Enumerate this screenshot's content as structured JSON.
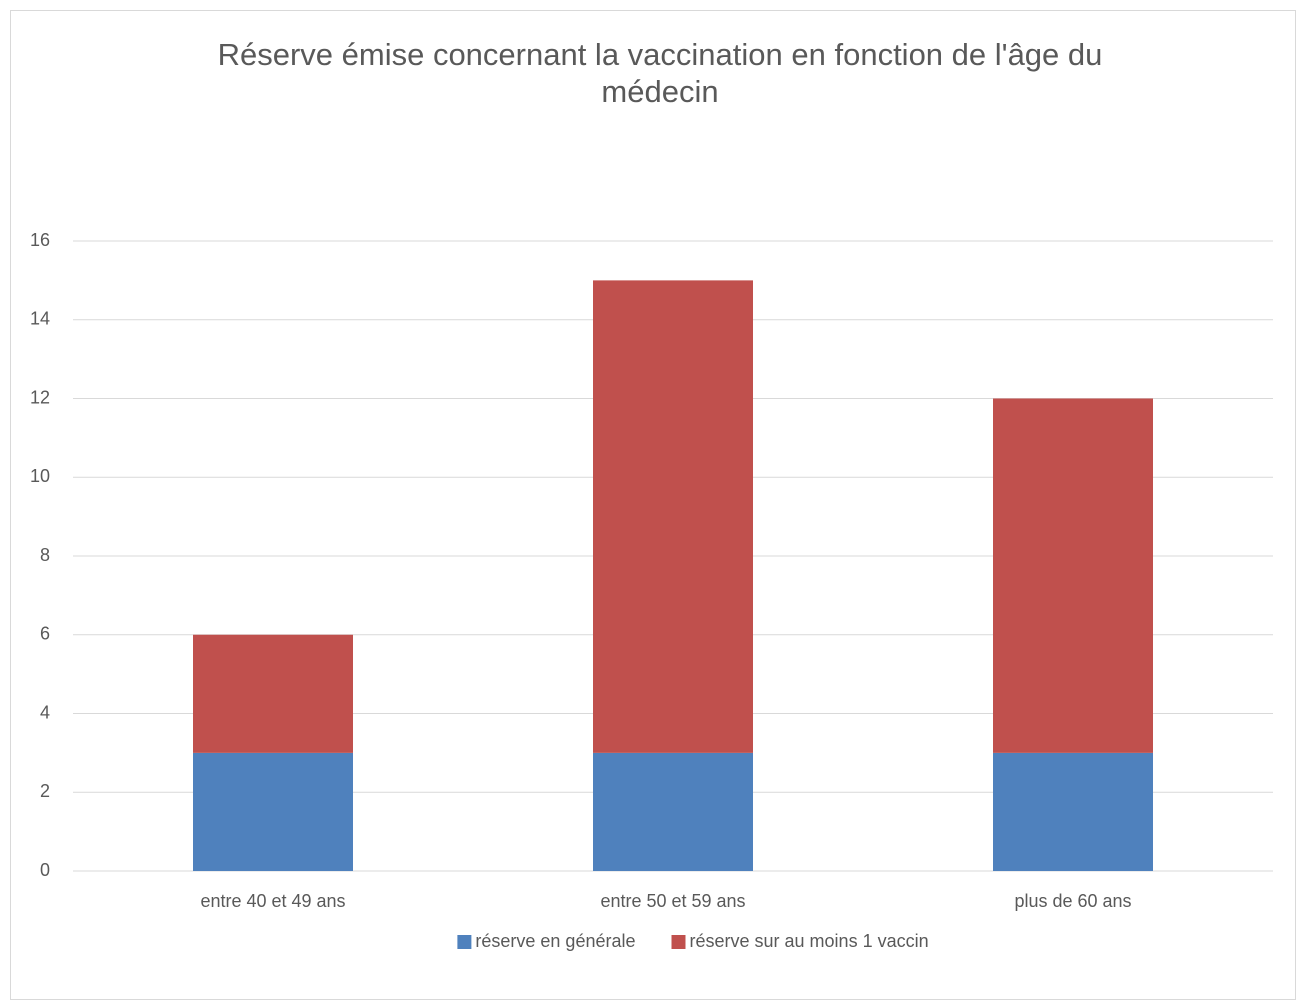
{
  "chart_data": {
    "type": "bar",
    "stacked": true,
    "title": "Réserve émise concernant la vaccination en fonction de l'âge du médecin",
    "categories": [
      "entre 40 et 49 ans",
      "entre 50 et 59 ans",
      "plus de 60 ans"
    ],
    "series": [
      {
        "name": "réserve en générale",
        "color": "#4f81bd",
        "values": [
          3,
          3,
          3
        ]
      },
      {
        "name": "réserve sur au moins 1 vaccin",
        "color": "#c0504d",
        "values": [
          3,
          12,
          9
        ]
      }
    ],
    "ylim": [
      0,
      16
    ],
    "yticks": [
      0,
      2,
      4,
      6,
      8,
      10,
      12,
      14,
      16
    ],
    "grid": true,
    "legend": "bottom"
  }
}
